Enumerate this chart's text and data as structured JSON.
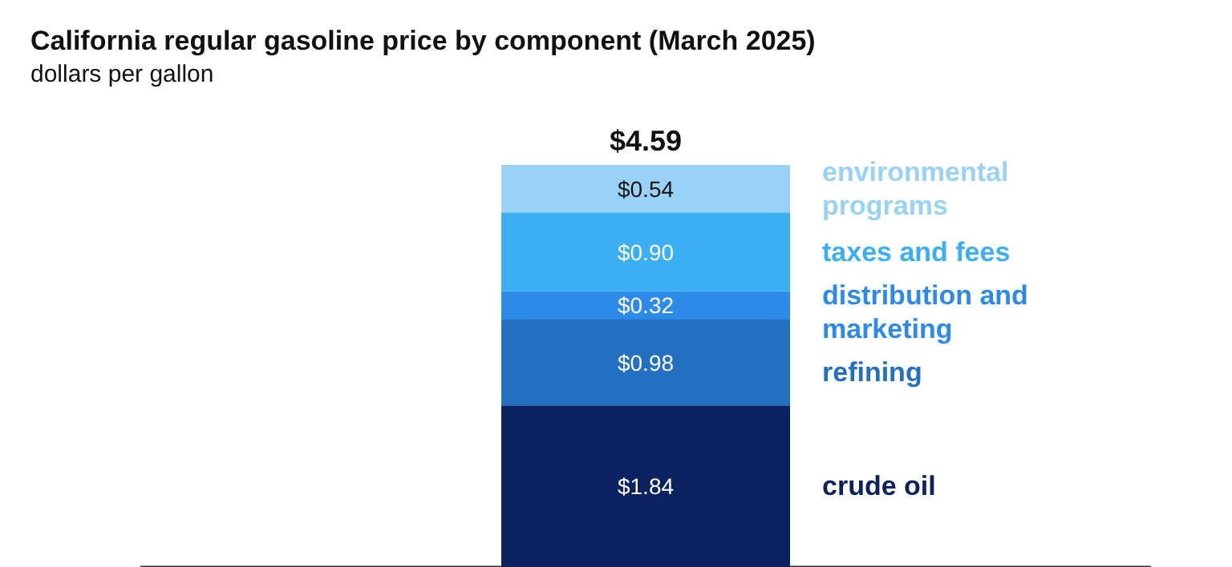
{
  "chart_data": {
    "type": "bar",
    "stacked": true,
    "title": "California regular gasoline price by component (March 2025)",
    "subtitle": "dollars per gallon",
    "categories": [
      null
    ],
    "series": [
      {
        "name": "crude oil",
        "color": "#0b2160",
        "values": [
          1.84
        ],
        "value_labels": [
          "$1.84"
        ]
      },
      {
        "name": "refining",
        "color": "#2470c0",
        "values": [
          0.98
        ],
        "value_labels": [
          "$0.98"
        ]
      },
      {
        "name": "distribution and marketing",
        "color": "#2e8ae8",
        "values": [
          0.32
        ],
        "value_labels": [
          "$0.32"
        ]
      },
      {
        "name": "taxes and fees",
        "color": "#3caef2",
        "values": [
          0.9
        ],
        "value_labels": [
          "$0.90"
        ]
      },
      {
        "name": "environmental programs",
        "color": "#99d2f4",
        "values": [
          0.54
        ],
        "value_labels": [
          "$0.54"
        ]
      }
    ],
    "totals": [
      "$4.59"
    ]
  }
}
